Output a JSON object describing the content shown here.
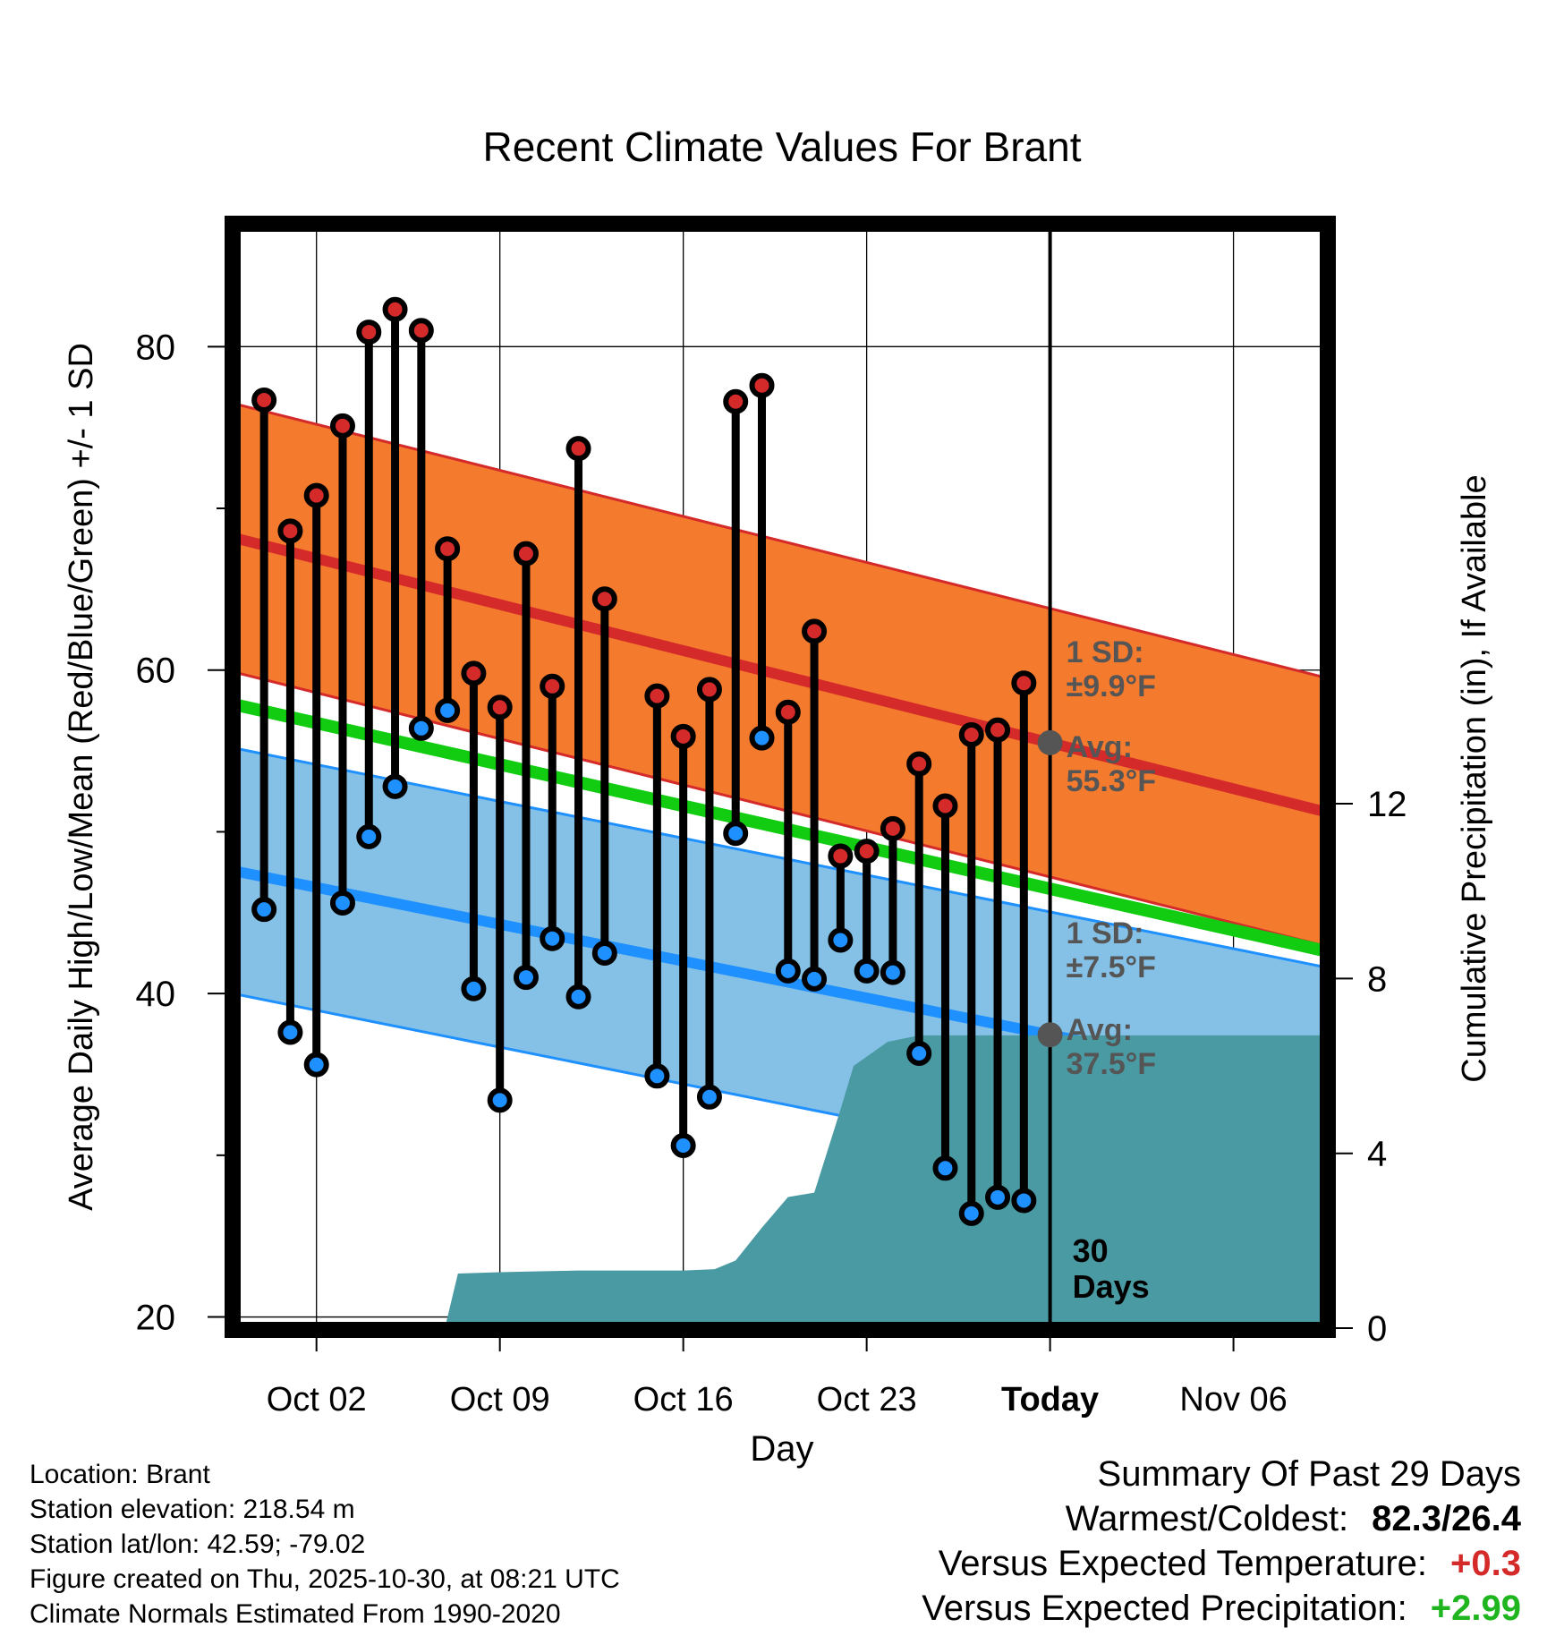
{
  "chart_data": {
    "type": "line",
    "title": "Recent Climate Values For Brant",
    "xlabel": "Day",
    "ylabel": "Average Daily High/Low/Mean (Red/Blue/Green) +/- 1 SD",
    "ylabel_right": "Cumulative Precipitation (in), If Available",
    "x_ticks": [
      {
        "day": 2,
        "label": "Oct 02"
      },
      {
        "day": 9,
        "label": "Oct 09"
      },
      {
        "day": 16,
        "label": "Oct 16"
      },
      {
        "day": 23,
        "label": "Oct 23"
      },
      {
        "day": 30,
        "label": "Today"
      },
      {
        "day": 37,
        "label": "Nov 06"
      }
    ],
    "xlim": [
      -1.2,
      40.6
    ],
    "ylim": [
      19.2,
      87.6
    ],
    "y_ticks": [
      20,
      40,
      60,
      80
    ],
    "y2_ticks": [
      0,
      4,
      8,
      12
    ],
    "y2lim": [
      -0.04,
      25.27
    ],
    "normals": {
      "high_mean": {
        "start": 68.2,
        "end": 51.2
      },
      "high_sd": 8.3,
      "low_mean": {
        "start": 47.6,
        "end": 34.0
      },
      "low_sd": 7.6,
      "mean": {
        "start": 57.9,
        "end": 42.6
      }
    },
    "daily": [
      {
        "day": 0,
        "high": 76.7,
        "low": 45.2
      },
      {
        "day": 1,
        "high": 68.6,
        "low": 37.6
      },
      {
        "day": 2,
        "high": 70.8,
        "low": 35.6
      },
      {
        "day": 3,
        "high": 75.1,
        "low": 45.6
      },
      {
        "day": 4,
        "high": 80.9,
        "low": 49.7
      },
      {
        "day": 5,
        "high": 82.3,
        "low": 52.8
      },
      {
        "day": 6,
        "high": 81.0,
        "low": 56.4
      },
      {
        "day": 7,
        "high": 67.5,
        "low": 57.5
      },
      {
        "day": 8,
        "high": 59.8,
        "low": 40.3
      },
      {
        "day": 9,
        "high": 57.7,
        "low": 33.4
      },
      {
        "day": 10,
        "high": 67.2,
        "low": 41.0
      },
      {
        "day": 11,
        "high": 59.0,
        "low": 43.4
      },
      {
        "day": 12,
        "high": 73.7,
        "low": 39.8
      },
      {
        "day": 13,
        "high": 64.4,
        "low": 42.5
      },
      {
        "day": 15,
        "high": 58.4,
        "low": 34.9
      },
      {
        "day": 16,
        "high": 55.9,
        "low": 30.6
      },
      {
        "day": 17,
        "high": 58.8,
        "low": 33.6
      },
      {
        "day": 18,
        "high": 76.6,
        "low": 49.9
      },
      {
        "day": 19,
        "high": 77.6,
        "low": 55.8
      },
      {
        "day": 20,
        "high": 57.4,
        "low": 41.4
      },
      {
        "day": 21,
        "high": 62.4,
        "low": 40.9
      },
      {
        "day": 22,
        "high": 48.5,
        "low": 43.3
      },
      {
        "day": 23,
        "high": 48.8,
        "low": 41.4
      },
      {
        "day": 24,
        "high": 50.2,
        "low": 41.3
      },
      {
        "day": 25,
        "high": 54.2,
        "low": 36.3
      },
      {
        "day": 26,
        "high": 51.6,
        "low": 29.2
      },
      {
        "day": 27,
        "high": 56.0,
        "low": 26.4
      },
      {
        "day": 28,
        "high": 56.3,
        "low": 27.4
      },
      {
        "day": 29,
        "high": 59.2,
        "low": 27.2
      }
    ],
    "precip_cumulative": [
      {
        "day": 6.9,
        "value": 0.0
      },
      {
        "day": 7.4,
        "value": 1.25
      },
      {
        "day": 9.0,
        "value": 1.28
      },
      {
        "day": 10.5,
        "value": 1.3
      },
      {
        "day": 12.0,
        "value": 1.32
      },
      {
        "day": 14.0,
        "value": 1.32
      },
      {
        "day": 16.0,
        "value": 1.32
      },
      {
        "day": 17.2,
        "value": 1.35
      },
      {
        "day": 18.0,
        "value": 1.55
      },
      {
        "day": 19.0,
        "value": 2.3
      },
      {
        "day": 20.0,
        "value": 3.0
      },
      {
        "day": 21.0,
        "value": 3.1
      },
      {
        "day": 22.0,
        "value": 5.0
      },
      {
        "day": 22.5,
        "value": 6.0
      },
      {
        "day": 23.8,
        "value": 6.55
      },
      {
        "day": 25.0,
        "value": 6.7
      },
      {
        "day": 40.6,
        "value": 6.7
      }
    ],
    "today_day": 30,
    "annotations": {
      "high_sd": "1 SD: ±9.9°F",
      "high_avg": "Avg: 55.3°F",
      "low_sd": "1 SD: ±7.5°F",
      "low_avg": "Avg: 37.5°F",
      "days_count": "30 Days"
    }
  },
  "info": {
    "location": "Location: Brant",
    "elevation": "Station elevation: 218.54 m",
    "latlon": "Station lat/lon: 42.59; -79.02",
    "created": "Figure created on Thu, 2025-10-30, at 08:21 UTC",
    "normals": "Climate Normals Estimated From 1990-2020"
  },
  "summary": {
    "title": "Summary Of Past 29 Days",
    "warm_cold_label": "Warmest/Coldest:",
    "warm_cold_value": "82.3/26.4",
    "temp_label": "Versus Expected Temperature:",
    "temp_value": "+0.3",
    "precip_label": "Versus Expected Precipitation:",
    "precip_value": "+2.99"
  },
  "colors": {
    "high_band": "#f47a2e",
    "high_line": "#d42a2a",
    "low_band": "#85c1e6",
    "low_line": "#1e90ff",
    "mean_line": "#11cc11",
    "precip": "#4a9aa3",
    "high_dot": "#d42a2a",
    "low_dot": "#1e90ff",
    "annotation": "#555555",
    "temp_delta": "#d42a2a",
    "precip_delta": "#1fb51f"
  }
}
